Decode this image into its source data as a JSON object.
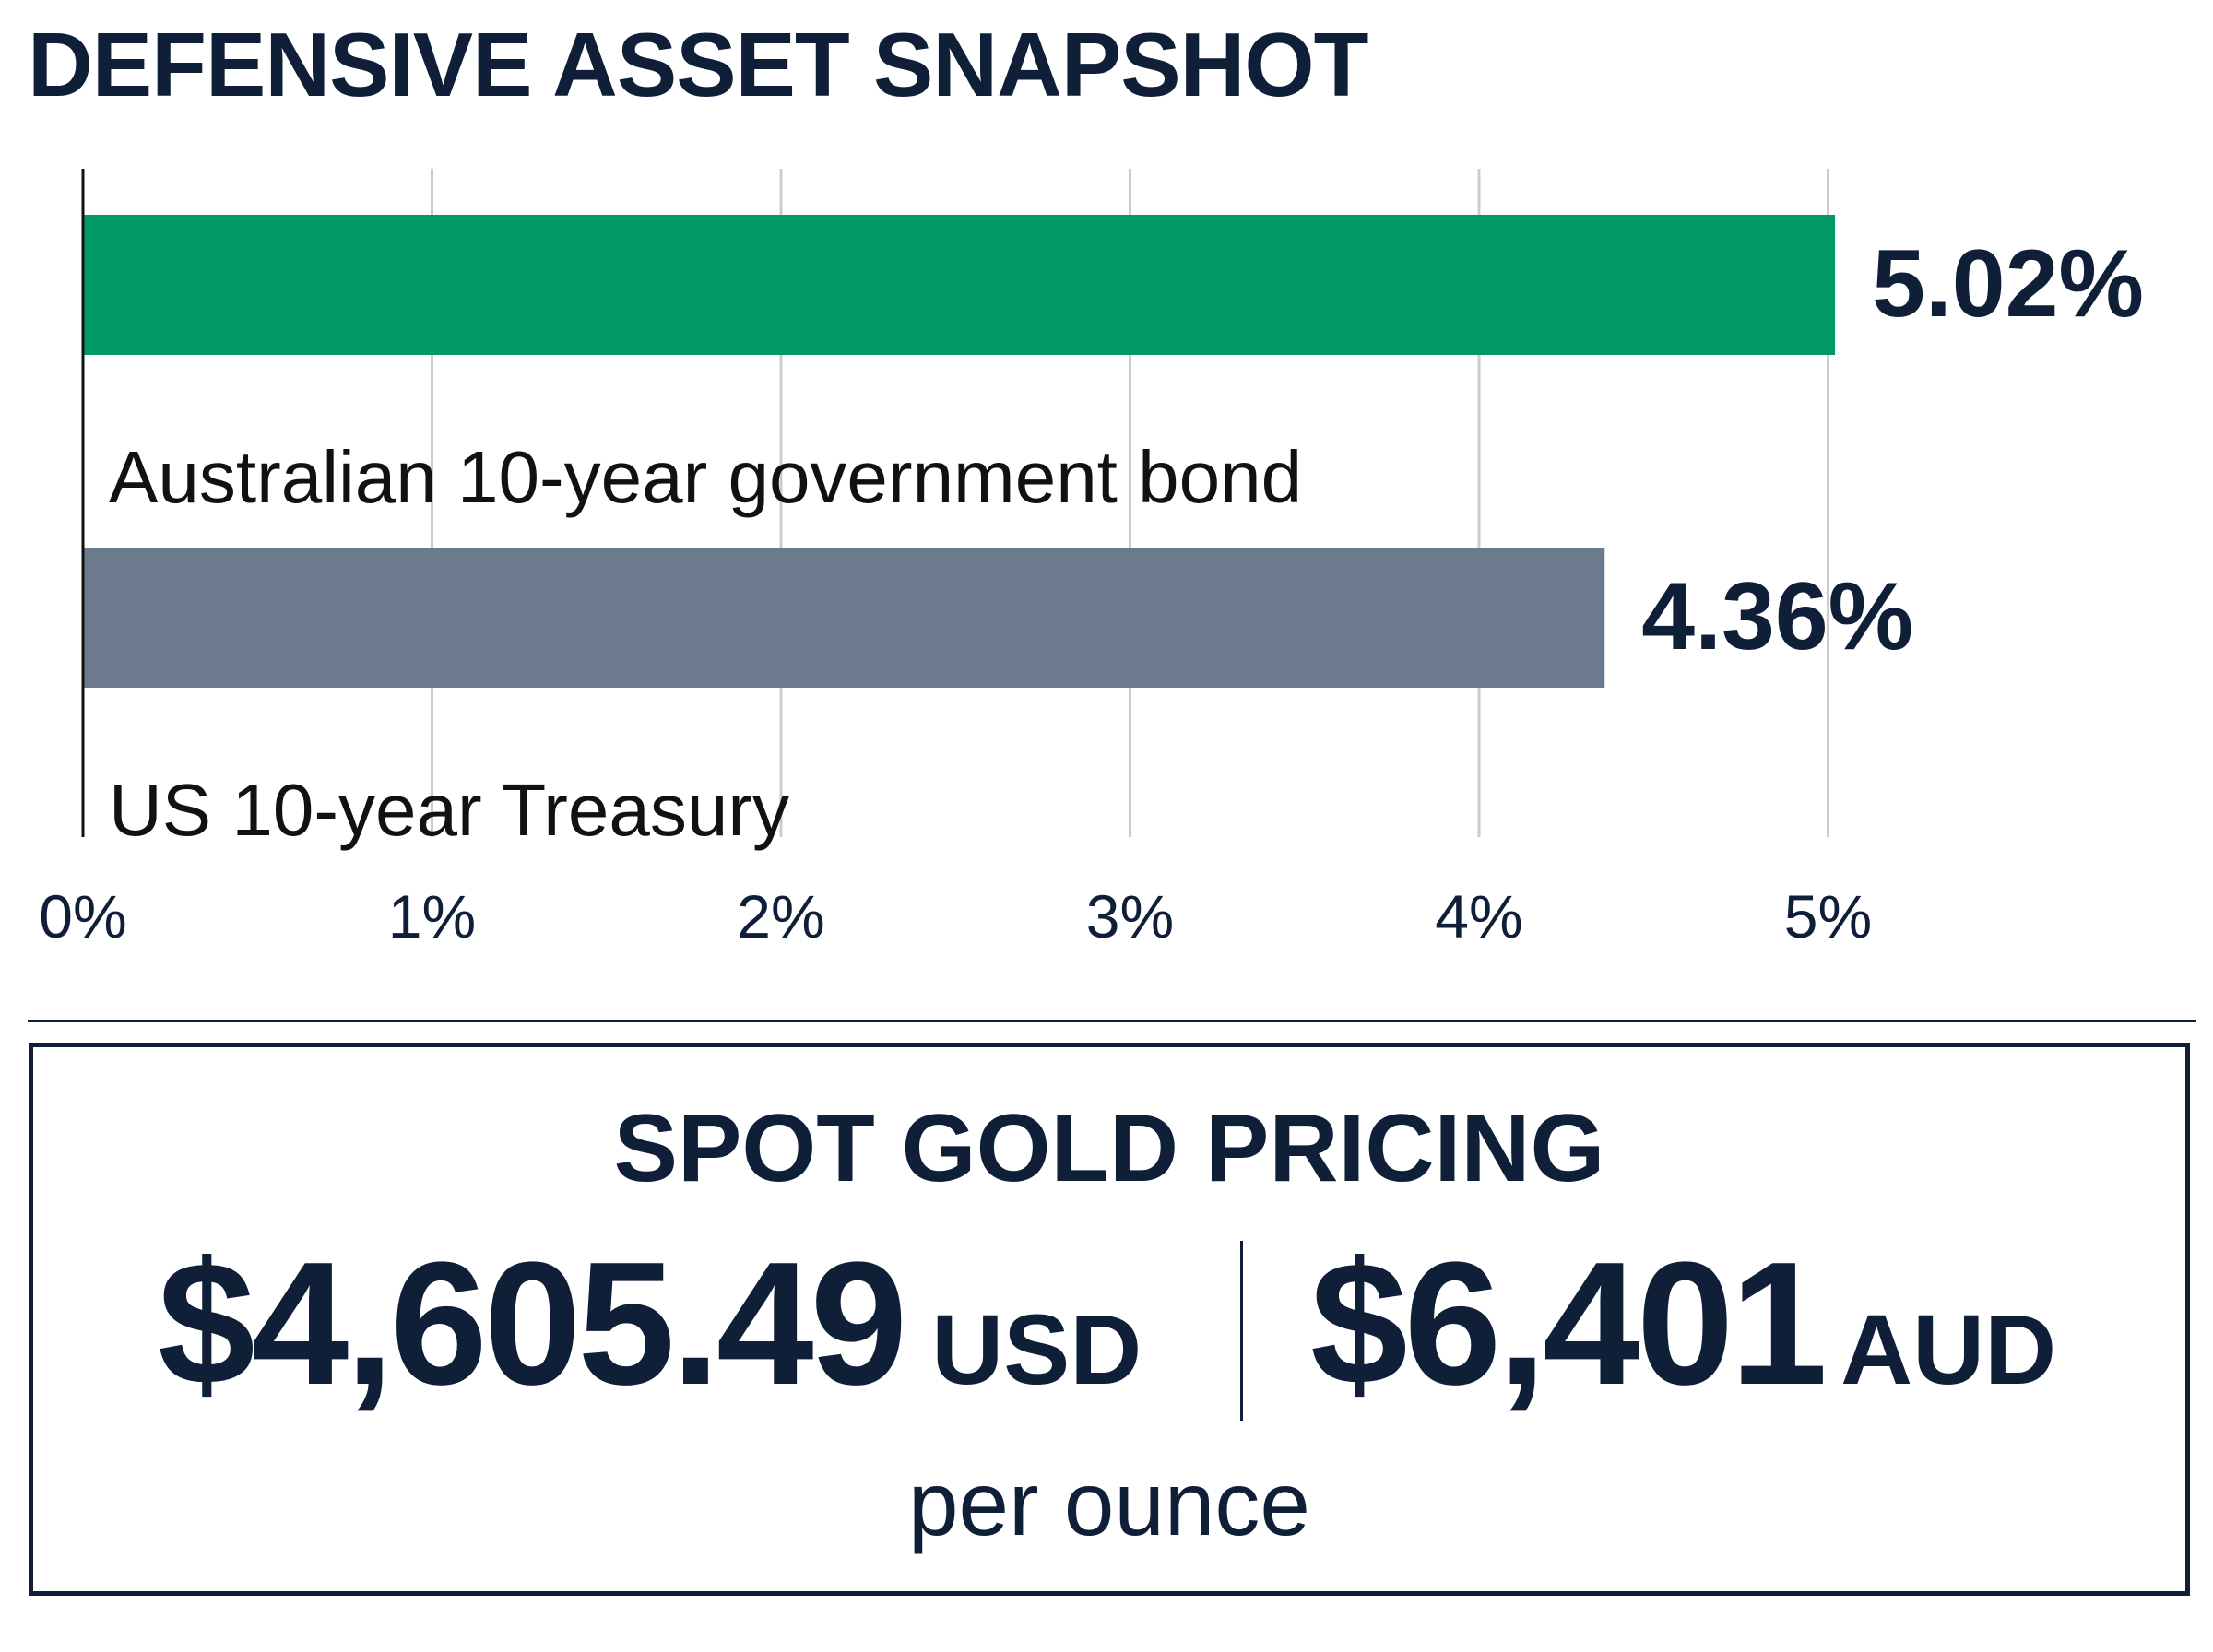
{
  "chart_data": {
    "type": "bar",
    "orientation": "horizontal",
    "title": "DEFENSIVE ASSET SNAPSHOT",
    "categories": [
      "Australian 10-year government bond",
      "US 10-year Treasury"
    ],
    "values": [
      5.02,
      4.36
    ],
    "value_labels": [
      "5.02%",
      "4.36%"
    ],
    "bar_colors": [
      "#009966",
      "#6b7b8d"
    ],
    "xlim": [
      0,
      5
    ],
    "xticks": [
      0,
      1,
      2,
      3,
      4,
      5
    ],
    "xtick_labels": [
      "0%",
      "1%",
      "2%",
      "3%",
      "4%",
      "5%"
    ],
    "grid": true
  },
  "gold": {
    "title": "SPOT GOLD PRICING",
    "usd_amount": "$4,605.49",
    "usd_currency": "USD",
    "aud_amount": "$6,401",
    "aud_currency": "AUD",
    "unit": "per ounce"
  },
  "colors": {
    "text": "#0f1f38",
    "grid": "#cccccc"
  }
}
